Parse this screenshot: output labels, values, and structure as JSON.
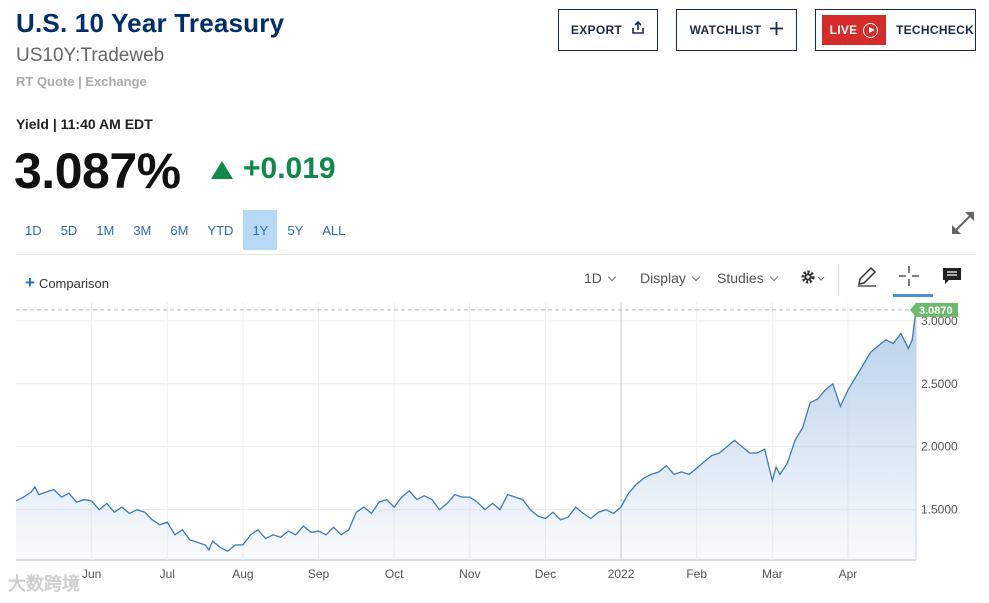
{
  "header": {
    "title": "U.S. 10 Year Treasury",
    "symbol": "US10Y:Tradeweb",
    "source": "RT Quote | Exchange",
    "export_label": "EXPORT",
    "watchlist_label": "WATCHLIST",
    "live_label": "LIVE",
    "techcheck_label": "TECHCHECK"
  },
  "quote": {
    "label": "Yield | 11:40 AM EDT",
    "value": "3.087%",
    "change": "+0.019",
    "direction": "up",
    "color_up": "#0f8a4c"
  },
  "ranges": {
    "items": [
      "1D",
      "5D",
      "1M",
      "3M",
      "6M",
      "YTD",
      "1Y",
      "5Y",
      "ALL"
    ],
    "active": "1Y"
  },
  "toolbar": {
    "comparison_label": "Comparison",
    "interval_label": "1D",
    "display_label": "Display",
    "studies_label": "Studies"
  },
  "icons": {
    "export": "share-icon",
    "watchlist": "plus-icon",
    "live": "play-icon",
    "expand": "expand-icon",
    "settings": "gear-icon",
    "draw": "pencil-icon",
    "crosshair": "crosshair-icon",
    "comment": "comment-icon"
  },
  "chart_data": {
    "type": "area",
    "title": "",
    "xlabel": "",
    "ylabel": "",
    "ylim": [
      1.1,
      3.15
    ],
    "grid": true,
    "y_ticks": [
      1.5,
      2.0,
      2.5,
      3.0
    ],
    "y_tick_labels": [
      "1.5000",
      "2.0000",
      "2.5000",
      "3.0000"
    ],
    "x_ticks": [
      {
        "label": "Jun",
        "month_index": 1
      },
      {
        "label": "Jul",
        "month_index": 2
      },
      {
        "label": "Aug",
        "month_index": 3
      },
      {
        "label": "Sep",
        "month_index": 4
      },
      {
        "label": "Oct",
        "month_index": 5
      },
      {
        "label": "Nov",
        "month_index": 6
      },
      {
        "label": "Dec",
        "month_index": 7
      },
      {
        "label": "2022",
        "month_index": 8
      },
      {
        "label": "Feb",
        "month_index": 9
      },
      {
        "label": "Mar",
        "month_index": 10
      },
      {
        "label": "Apr",
        "month_index": 11
      }
    ],
    "last_value": 3.087,
    "last_value_label": "3.0870",
    "line_color": "#3d7ab8",
    "fill_color": "#b3cde8",
    "last_label_color": "#6dba6d",
    "series": [
      {
        "x": [
          0.0,
          0.1,
          0.2,
          0.25,
          0.3,
          0.4,
          0.5,
          0.6,
          0.7,
          0.8,
          0.9,
          1.0,
          1.1,
          1.2,
          1.3,
          1.4,
          1.5,
          1.6,
          1.7,
          1.8,
          1.9,
          2.0,
          2.1,
          2.2,
          2.3,
          2.4,
          2.5,
          2.55,
          2.6,
          2.7,
          2.8,
          2.9,
          3.0,
          3.1,
          3.2,
          3.3,
          3.4,
          3.5,
          3.6,
          3.7,
          3.8,
          3.9,
          4.0,
          4.1,
          4.2,
          4.3,
          4.4,
          4.5,
          4.6,
          4.7,
          4.8,
          4.9,
          5.0,
          5.1,
          5.2,
          5.3,
          5.4,
          5.5,
          5.6,
          5.7,
          5.8,
          5.9,
          6.0,
          6.1,
          6.2,
          6.3,
          6.4,
          6.5,
          6.6,
          6.7,
          6.8,
          6.9,
          7.0,
          7.1,
          7.2,
          7.3,
          7.4,
          7.5,
          7.6,
          7.7,
          7.8,
          7.9,
          8.0,
          8.1,
          8.2,
          8.3,
          8.4,
          8.5,
          8.6,
          8.7,
          8.8,
          8.9,
          9.0,
          9.1,
          9.2,
          9.3,
          9.4,
          9.5,
          9.6,
          9.7,
          9.8,
          9.9,
          10.0,
          10.05,
          10.1,
          10.2,
          10.3,
          10.4,
          10.5,
          10.6,
          10.7,
          10.8,
          10.9,
          11.0,
          11.1,
          11.2,
          11.3,
          11.4,
          11.5,
          11.6,
          11.7,
          11.8,
          11.85,
          11.9
        ],
        "values": [
          1.57,
          1.6,
          1.64,
          1.68,
          1.62,
          1.64,
          1.66,
          1.6,
          1.63,
          1.56,
          1.58,
          1.57,
          1.5,
          1.55,
          1.48,
          1.52,
          1.47,
          1.5,
          1.48,
          1.42,
          1.38,
          1.4,
          1.3,
          1.34,
          1.26,
          1.24,
          1.22,
          1.18,
          1.25,
          1.2,
          1.17,
          1.22,
          1.22,
          1.3,
          1.34,
          1.27,
          1.3,
          1.28,
          1.33,
          1.3,
          1.37,
          1.32,
          1.33,
          1.3,
          1.36,
          1.3,
          1.34,
          1.48,
          1.52,
          1.47,
          1.56,
          1.58,
          1.52,
          1.6,
          1.65,
          1.58,
          1.61,
          1.58,
          1.5,
          1.55,
          1.62,
          1.6,
          1.6,
          1.56,
          1.5,
          1.55,
          1.5,
          1.62,
          1.6,
          1.58,
          1.5,
          1.45,
          1.43,
          1.48,
          1.42,
          1.44,
          1.52,
          1.47,
          1.43,
          1.48,
          1.5,
          1.47,
          1.52,
          1.63,
          1.7,
          1.75,
          1.78,
          1.8,
          1.85,
          1.78,
          1.8,
          1.78,
          1.83,
          1.88,
          1.93,
          1.95,
          2.0,
          2.05,
          2.0,
          1.95,
          1.95,
          1.98,
          1.73,
          1.84,
          1.78,
          1.87,
          2.05,
          2.15,
          2.35,
          2.38,
          2.45,
          2.5,
          2.32,
          2.45,
          2.55,
          2.65,
          2.75,
          2.8,
          2.85,
          2.82,
          2.9,
          2.78,
          2.85,
          3.087
        ]
      }
    ]
  },
  "watermark": "大数跨境"
}
